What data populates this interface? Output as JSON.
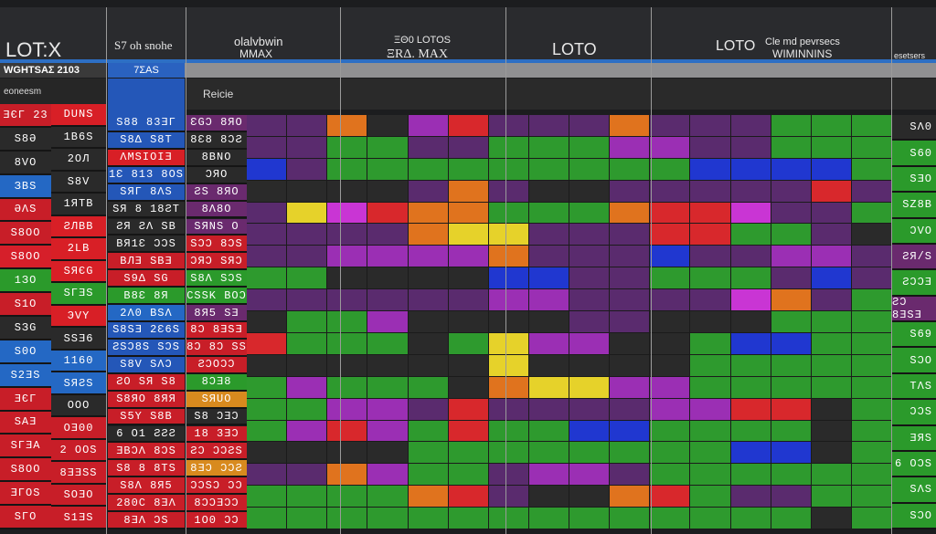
{
  "header": {
    "col1_title": "LOT:X",
    "col2_title": "S7 oh snohe",
    "col3_title_a": "olalvbwin",
    "col3_title_b": "MMAX",
    "col4_title_a": "ΞΘ0 LOTOS",
    "col4_title_b": "ΞRΔ. MAX",
    "col5_title": "LOTO",
    "col6_title_a": "LOTO",
    "col6_title_b": "Cle md pevrsecs",
    "col6_title_c": "WIMINNINS",
    "col7_title": "esetsers"
  },
  "subheader": {
    "left_label": "WGHTSAΣ 2103",
    "blue_label": "7ΣAS",
    "left_row2": "eoneesm",
    "center_row2": "Reicie"
  },
  "colors": {
    "purple": "#5a2b6e",
    "violet": "#9b2fb4",
    "green": "#2e9a2e",
    "red": "#d8282c",
    "orange": "#e0731e",
    "yellow": "#e6d22a",
    "blue": "#2037d0",
    "dark": "#2a2a2a",
    "magenta": "#c935d4"
  },
  "col1": [
    "ƎЄΓ 23",
    "S8Ə",
    "8VO",
    "ЗBS",
    "ƏΛS",
    "S8OO",
    "S8OO",
    "1ЗO",
    "S1O",
    "SЗG",
    "S0O",
    "S2ƎS",
    "ƎЄΓ",
    "SAƎ",
    "SΓƎA",
    "S8OO",
    "ƎΓOS",
    "SΓO"
  ],
  "col2": [
    "DUNS",
    "1B6S",
    "2OЛ",
    "S8V",
    "1ЯTB",
    "ƧЛBB",
    "2LB",
    "SЯЄG",
    "SΓƎS",
    "ЭVY",
    "SSƎ6",
    "1160",
    "SЯƧS",
    "OOO",
    "OƎ00",
    "2 OOS",
    "8ƎƎSS",
    "SOƎO",
    "S1ƎS"
  ],
  "col3": [
    "S88 83ƎΓ",
    "S8Δ S8T",
    "ΛMSIOIƎ",
    "1Ɛ 813 8OS",
    "SЯΓ 8ΛS",
    "SЯ 8 18ƧT",
    "ƧЯ ƧΛ SB",
    "BЯ1Ɛ ƆƆS",
    "BЛƎ SBƎ",
    "S9Δ SG",
    "B8Ɛ 8Я",
    "2Λ0 BSΛ",
    "S8SƎ 2Ɛ6S",
    "ƧSƆ8S SƆS",
    "S8V SΛƆ",
    "ƧO SЯ S8",
    "S8ЯO 8ЯЯ",
    "S5Y S8B",
    "6 O1 ƧƧƧ",
    "ƎBƆΛ 8ƆS",
    "S8 8 8TS",
    "S8Λ 8Я5",
    "280C 8ƎΛ",
    "8ƎΛ ƆS"
  ],
  "col4": [
    "ƐGƆ 8ЯO",
    "8Ɛ8 8ƆƧ",
    "8BNO",
    "ƆЯO",
    "ƧS 8ЯO",
    "8Λ8O",
    "SЯNS O",
    "SƆƆ 8ƆS",
    "ƆЯƆ SЯƆ",
    "S8Λ SƆS",
    "CSSK BOƆ",
    "8Я5 SƎ",
    "8Ɔ 8ƎSƎ",
    "8Ɔ 8Ɔ SS",
    "ƧƆOƆƆ",
    "8ƆƎ8",
    "SЯUO",
    "S8 ƆƎƆ",
    "18 3ƎƆ",
    "ƧƆ ƆƆƧS",
    "8ƎƆ ƆƆƧ",
    "ƆƆSƆ ƆƆ",
    "8ƆƆƎƆƆ",
    "1O0 ƆƆ"
  ],
  "right": [
    "SΛ0",
    "S60",
    "SƎO",
    "SZ8B",
    "ƆVO",
    "ƧЯ/S",
    "ƧƆƆƎ",
    "ƧƆ 8ƎSƎ",
    "S69",
    "SƆO",
    "TΛS",
    "ƆƆS",
    "ƎЯS",
    "6 OƆS",
    "SΛS",
    "SƆO"
  ],
  "grid_rows": [
    [
      "purple",
      "purple",
      "orange",
      "dark",
      "violet",
      "red",
      "purple",
      "purple",
      "purple",
      "orange",
      "purple",
      "purple",
      "purple",
      "green",
      "green",
      "green"
    ],
    [
      "purple",
      "purple",
      "green",
      "green",
      "purple",
      "purple",
      "green",
      "green",
      "green",
      "violet",
      "violet",
      "purple",
      "purple",
      "green",
      "green",
      "green"
    ],
    [
      "blue",
      "purple",
      "green",
      "green",
      "green",
      "green",
      "green",
      "green",
      "green",
      "green",
      "green",
      "blue",
      "blue",
      "blue",
      "blue",
      "green"
    ],
    [
      "dark",
      "dark",
      "dark",
      "dark",
      "purple",
      "orange",
      "purple",
      "dark",
      "dark",
      "purple",
      "purple",
      "purple",
      "purple",
      "purple",
      "red",
      "purple"
    ],
    [
      "purple",
      "yellow",
      "magenta",
      "red",
      "orange",
      "orange",
      "green",
      "green",
      "green",
      "orange",
      "red",
      "red",
      "magenta",
      "purple",
      "purple",
      "green"
    ],
    [
      "purple",
      "purple",
      "purple",
      "purple",
      "orange",
      "yellow",
      "yellow",
      "purple",
      "purple",
      "purple",
      "red",
      "red",
      "green",
      "green",
      "purple",
      "dark"
    ],
    [
      "purple",
      "purple",
      "violet",
      "violet",
      "violet",
      "violet",
      "orange",
      "purple",
      "purple",
      "purple",
      "blue",
      "purple",
      "purple",
      "violet",
      "violet",
      "purple"
    ],
    [
      "green",
      "green",
      "dark",
      "dark",
      "dark",
      "dark",
      "blue",
      "blue",
      "purple",
      "purple",
      "green",
      "green",
      "green",
      "purple",
      "blue",
      "purple"
    ],
    [
      "purple",
      "purple",
      "purple",
      "purple",
      "purple",
      "purple",
      "violet",
      "violet",
      "purple",
      "purple",
      "purple",
      "purple",
      "magenta",
      "orange",
      "purple",
      "green"
    ],
    [
      "dark",
      "green",
      "green",
      "violet",
      "dark",
      "dark",
      "dark",
      "dark",
      "purple",
      "purple",
      "dark",
      "dark",
      "dark",
      "green",
      "green",
      "green"
    ],
    [
      "red",
      "green",
      "green",
      "green",
      "dark",
      "green",
      "yellow",
      "violet",
      "violet",
      "dark",
      "dark",
      "green",
      "blue",
      "blue",
      "green",
      "green"
    ],
    [
      "dark",
      "dark",
      "dark",
      "dark",
      "dark",
      "dark",
      "yellow",
      "dark",
      "dark",
      "dark",
      "dark",
      "green",
      "green",
      "green",
      "green",
      "green"
    ],
    [
      "green",
      "violet",
      "green",
      "green",
      "green",
      "dark",
      "orange",
      "yellow",
      "yellow",
      "violet",
      "violet",
      "green",
      "green",
      "green",
      "green",
      "green"
    ],
    [
      "green",
      "green",
      "violet",
      "violet",
      "purple",
      "red",
      "purple",
      "purple",
      "purple",
      "purple",
      "violet",
      "violet",
      "red",
      "red",
      "dark",
      "green"
    ],
    [
      "green",
      "violet",
      "red",
      "violet",
      "green",
      "red",
      "green",
      "green",
      "blue",
      "blue",
      "green",
      "green",
      "green",
      "green",
      "dark",
      "green"
    ],
    [
      "dark",
      "dark",
      "dark",
      "dark",
      "green",
      "green",
      "green",
      "green",
      "green",
      "green",
      "green",
      "green",
      "blue",
      "blue",
      "dark",
      "green"
    ],
    [
      "purple",
      "purple",
      "orange",
      "violet",
      "green",
      "green",
      "purple",
      "violet",
      "violet",
      "purple",
      "green",
      "green",
      "green",
      "green",
      "green",
      "green"
    ],
    [
      "green",
      "green",
      "green",
      "green",
      "orange",
      "red",
      "purple",
      "dark",
      "dark",
      "orange",
      "red",
      "green",
      "purple",
      "purple",
      "green",
      "green"
    ],
    [
      "green",
      "green",
      "green",
      "green",
      "green",
      "green",
      "green",
      "green",
      "green",
      "green",
      "green",
      "green",
      "green",
      "green",
      "dark",
      "green"
    ]
  ]
}
